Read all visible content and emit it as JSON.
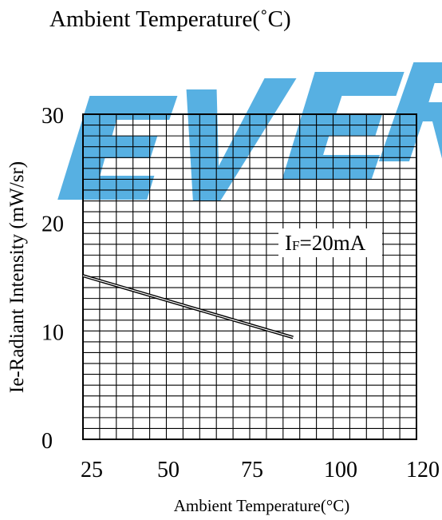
{
  "chart_data": {
    "type": "line",
    "title": "Ambient Temperature(˚C)",
    "watermark": "EVER",
    "watermark_color": "#3aa2dd",
    "xlabel": "Ambient Temperature(°C)",
    "ylabel": "Ie-Radiant Intensity (mW/sr)",
    "x_ticks": [
      "25",
      "50",
      "75",
      "100",
      "120"
    ],
    "y_ticks": [
      "0",
      "10",
      "20",
      "30"
    ],
    "xlim": [
      20,
      120
    ],
    "ylim": [
      0,
      30
    ],
    "grid": true,
    "annotation": {
      "main": "I",
      "sub": "F",
      "rest": "=20mA"
    },
    "series": [
      {
        "x": [
          20,
          83
        ],
        "y": [
          15.1,
          9.4
        ]
      }
    ]
  }
}
